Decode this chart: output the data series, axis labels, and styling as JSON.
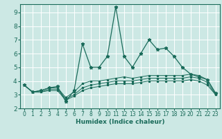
{
  "xlabel": "Humidex (Indice chaleur)",
  "xlim": [
    -0.5,
    23.5
  ],
  "ylim": [
    2,
    9.6
  ],
  "xticks": [
    0,
    1,
    2,
    3,
    4,
    5,
    6,
    7,
    8,
    9,
    10,
    11,
    12,
    13,
    14,
    15,
    16,
    17,
    18,
    19,
    20,
    21,
    22,
    23
  ],
  "yticks": [
    2,
    3,
    4,
    5,
    6,
    7,
    8,
    9
  ],
  "bg_color": "#cce8e4",
  "line_color": "#1a6b5a",
  "grid_color": "#ffffff",
  "lines": [
    {
      "x": [
        0,
        1,
        2,
        3,
        4,
        5,
        6,
        7,
        8,
        9,
        10,
        11,
        12,
        13,
        14,
        15,
        16,
        17,
        18,
        19,
        20,
        21,
        22,
        23
      ],
      "y": [
        3.7,
        3.2,
        3.3,
        3.5,
        3.6,
        2.5,
        3.3,
        6.7,
        5.0,
        5.0,
        5.8,
        9.4,
        5.8,
        5.0,
        6.0,
        7.0,
        6.3,
        6.4,
        5.8,
        5.0,
        4.5,
        4.3,
        4.1,
        3.1
      ]
    },
    {
      "x": [
        0,
        1,
        2,
        3,
        4,
        5,
        6,
        7,
        8,
        9,
        10,
        11,
        12,
        13,
        14,
        15,
        16,
        17,
        18,
        19,
        20,
        21,
        22,
        23
      ],
      "y": [
        3.7,
        3.2,
        3.3,
        3.5,
        3.5,
        2.8,
        3.2,
        3.8,
        4.0,
        4.0,
        4.1,
        4.2,
        4.3,
        4.2,
        4.3,
        4.4,
        4.4,
        4.4,
        4.4,
        4.4,
        4.5,
        4.4,
        4.1,
        3.1
      ]
    },
    {
      "x": [
        0,
        1,
        2,
        3,
        4,
        5,
        6,
        7,
        8,
        9,
        10,
        11,
        12,
        13,
        14,
        15,
        16,
        17,
        18,
        19,
        20,
        21,
        22,
        23
      ],
      "y": [
        3.7,
        3.2,
        3.2,
        3.4,
        3.4,
        2.7,
        3.0,
        3.5,
        3.7,
        3.8,
        3.9,
        4.0,
        4.0,
        4.0,
        4.1,
        4.2,
        4.2,
        4.2,
        4.2,
        4.2,
        4.3,
        4.2,
        3.9,
        3.0
      ]
    },
    {
      "x": [
        0,
        1,
        2,
        3,
        4,
        5,
        6,
        7,
        8,
        9,
        10,
        11,
        12,
        13,
        14,
        15,
        16,
        17,
        18,
        19,
        20,
        21,
        22,
        23
      ],
      "y": [
        3.7,
        3.2,
        3.2,
        3.3,
        3.3,
        2.6,
        2.9,
        3.3,
        3.5,
        3.6,
        3.7,
        3.8,
        3.8,
        3.8,
        3.9,
        4.0,
        4.0,
        4.0,
        4.0,
        4.0,
        4.1,
        4.0,
        3.7,
        3.0
      ]
    }
  ]
}
